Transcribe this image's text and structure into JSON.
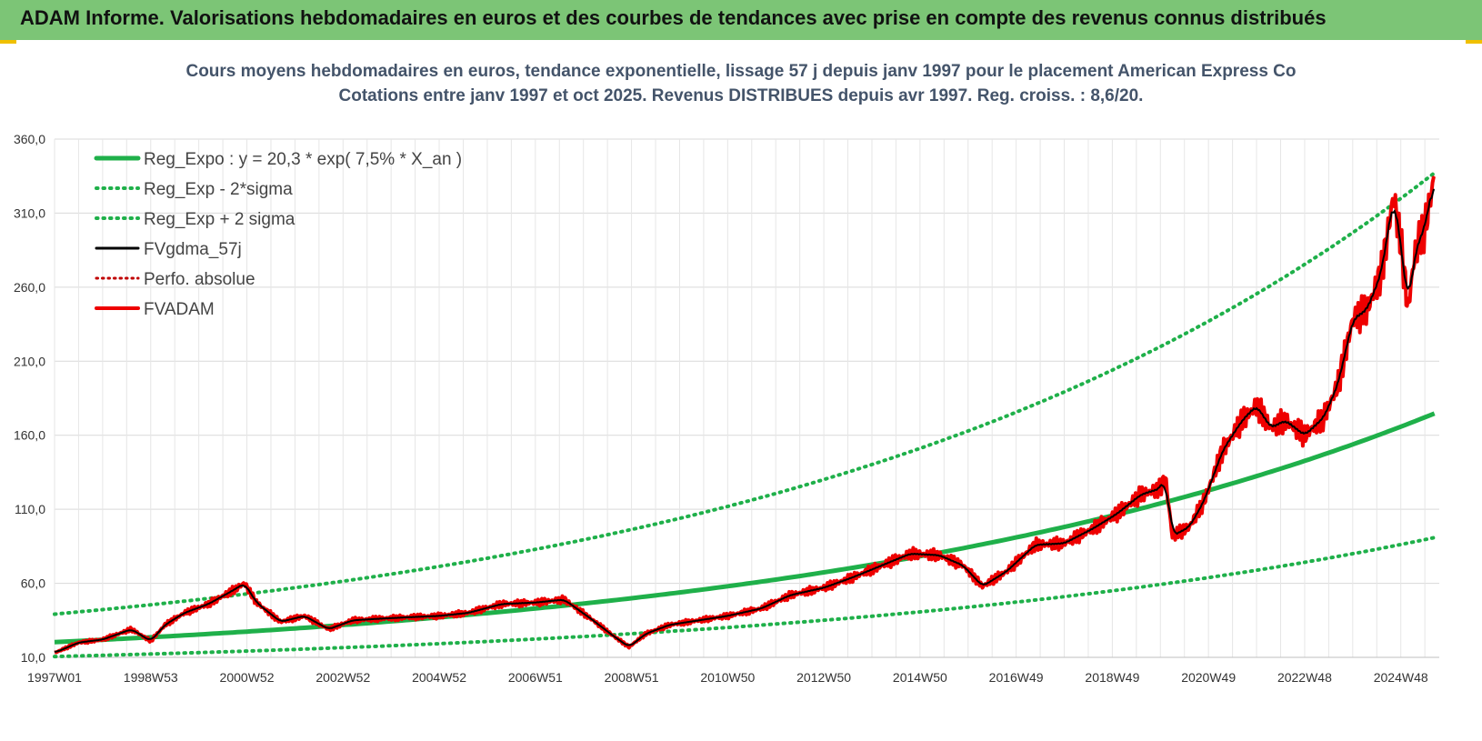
{
  "header": {
    "title": "ADAM Informe. Valorisations hebdomadaires en euros et des courbes de tendances avec prise en compte des revenus connus distribués"
  },
  "colors": {
    "banner": "#7cc576",
    "trend": "#1fb04a",
    "price": "#ee0000",
    "smooth": "#000000",
    "perf": "#c00000",
    "grid": "#d9d9d9"
  },
  "chart_data": {
    "type": "line",
    "title": "Cours moyens hebdomadaires en euros, tendance exponentielle, lissage 57 j depuis janv 1997 pour le placement American Express Co",
    "subtitle": "Cotations entre janv 1997 et oct 2025. Revenus DISTRIBUES depuis avr 1997. Reg. croiss. : 8,6/20.",
    "xlabel": "",
    "ylabel": "",
    "xlim": [
      1997.0,
      2025.8
    ],
    "ylim": [
      10,
      360
    ],
    "grid": true,
    "legend_position": "top-left",
    "y_ticks": [
      "10,0",
      "60,0",
      "110,0",
      "160,0",
      "210,0",
      "260,0",
      "310,0",
      "360,0"
    ],
    "y_tick_values": [
      10,
      60,
      110,
      160,
      210,
      260,
      310,
      360
    ],
    "x_ticks": [
      {
        "label": "1997W01",
        "x": 1997.0
      },
      {
        "label": "1998W53",
        "x": 1999.0
      },
      {
        "label": "2000W52",
        "x": 2001.0
      },
      {
        "label": "2002W52",
        "x": 2003.0
      },
      {
        "label": "2004W52",
        "x": 2005.0
      },
      {
        "label": "2006W51",
        "x": 2007.0
      },
      {
        "label": "2008W51",
        "x": 2009.0
      },
      {
        "label": "2010W50",
        "x": 2011.0
      },
      {
        "label": "2012W50",
        "x": 2013.0
      },
      {
        "label": "2014W50",
        "x": 2015.0
      },
      {
        "label": "2016W49",
        "x": 2017.0
      },
      {
        "label": "2018W49",
        "x": 2019.0
      },
      {
        "label": "2020W49",
        "x": 2021.0
      },
      {
        "label": "2022W48",
        "x": 2023.0
      },
      {
        "label": "2024W48",
        "x": 2025.0
      }
    ],
    "trend": {
      "a": 20.3,
      "rate": 0.075,
      "lower_factor": 0.52,
      "upper_factor": 1.93,
      "x_start": 1997.0,
      "x_end": 2025.75
    },
    "series": [
      {
        "name": "Reg_Expo : y = 20,3 * exp( 7,5% *  X_an )",
        "kind": "trend"
      },
      {
        "name": "Reg_Exp - 2*sigma",
        "kind": "trend_lower"
      },
      {
        "name": "Reg_Exp + 2 sigma",
        "kind": "trend_upper"
      },
      {
        "name": "FVgdma_57j",
        "kind": "smooth"
      },
      {
        "name": "Perfo. absolue",
        "kind": "perf"
      },
      {
        "name": "FVADAM",
        "kind": "price",
        "x": [
          1997.0,
          1997.5,
          1998.0,
          1998.6,
          1999.0,
          1999.3,
          1999.7,
          2000.2,
          2000.7,
          2000.95,
          2001.2,
          2001.7,
          2002.2,
          2002.7,
          2003.2,
          2003.7,
          2004.3,
          2005.0,
          2005.6,
          2006.3,
          2007.0,
          2007.6,
          2008.2,
          2008.6,
          2008.95,
          2009.3,
          2009.8,
          2010.4,
          2011.0,
          2011.7,
          2012.3,
          2013.0,
          2013.6,
          2014.2,
          2014.8,
          2015.4,
          2015.9,
          2016.3,
          2016.8,
          2017.4,
          2018.0,
          2018.6,
          2019.1,
          2019.6,
          2020.0,
          2020.1,
          2020.25,
          2020.6,
          2020.9,
          2021.3,
          2021.7,
          2022.0,
          2022.3,
          2022.6,
          2023.0,
          2023.4,
          2023.7,
          2024.0,
          2024.3,
          2024.6,
          2024.85,
          2025.0,
          2025.15,
          2025.3,
          2025.5,
          2025.7
        ],
        "y": [
          13,
          20,
          22,
          29,
          21,
          32,
          40,
          46,
          55,
          60,
          47,
          34,
          38,
          29,
          35,
          36,
          37,
          38,
          40,
          46,
          47,
          49,
          35,
          25,
          17,
          26,
          32,
          35,
          38,
          43,
          52,
          57,
          64,
          72,
          80,
          79,
          72,
          58,
          68,
          86,
          87,
          97,
          107,
          120,
          124,
          132,
          92,
          98,
          115,
          150,
          170,
          180,
          165,
          170,
          160,
          172,
          195,
          238,
          245,
          270,
          322,
          290,
          245,
          285,
          300,
          335
        ]
      }
    ]
  }
}
